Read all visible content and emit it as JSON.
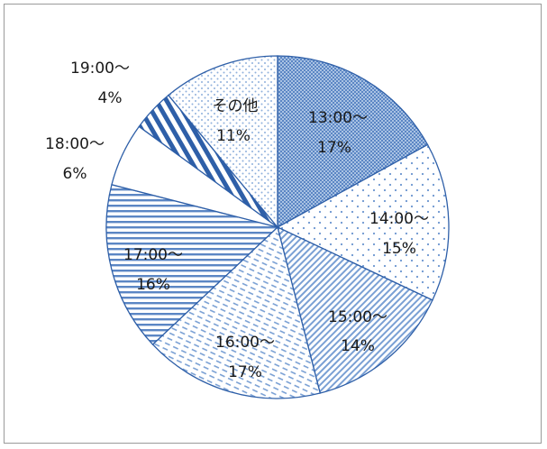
{
  "chart_data": {
    "type": "pie",
    "start_angle_deg": 0,
    "direction": "clockwise",
    "slices": [
      {
        "label": "13:00〜",
        "pct_label": "17%",
        "value": 17,
        "pattern": "crosshatch"
      },
      {
        "label": "14:00〜",
        "pct_label": "15%",
        "value": 15,
        "pattern": "sparse-dots"
      },
      {
        "label": "15:00〜",
        "pct_label": "14%",
        "value": 14,
        "pattern": "diagonal"
      },
      {
        "label": "16:00〜",
        "pct_label": "17%",
        "value": 17,
        "pattern": "dashes"
      },
      {
        "label": "17:00〜",
        "pct_label": "16%",
        "value": 16,
        "pattern": "horizontal"
      },
      {
        "label": "18:00〜",
        "pct_label": "6%",
        "value": 6,
        "pattern": "solid-white"
      },
      {
        "label": "19:00〜",
        "pct_label": "4%",
        "value": 4,
        "pattern": "wide-diagonal"
      },
      {
        "label": "その他",
        "pct_label": "11%",
        "value": 11,
        "pattern": "dense-dots"
      }
    ],
    "colors": {
      "accent": "#4f7fbf",
      "dark": "#2e5fa8",
      "outline": "#ffffff",
      "text": "#1a1a1a"
    }
  }
}
